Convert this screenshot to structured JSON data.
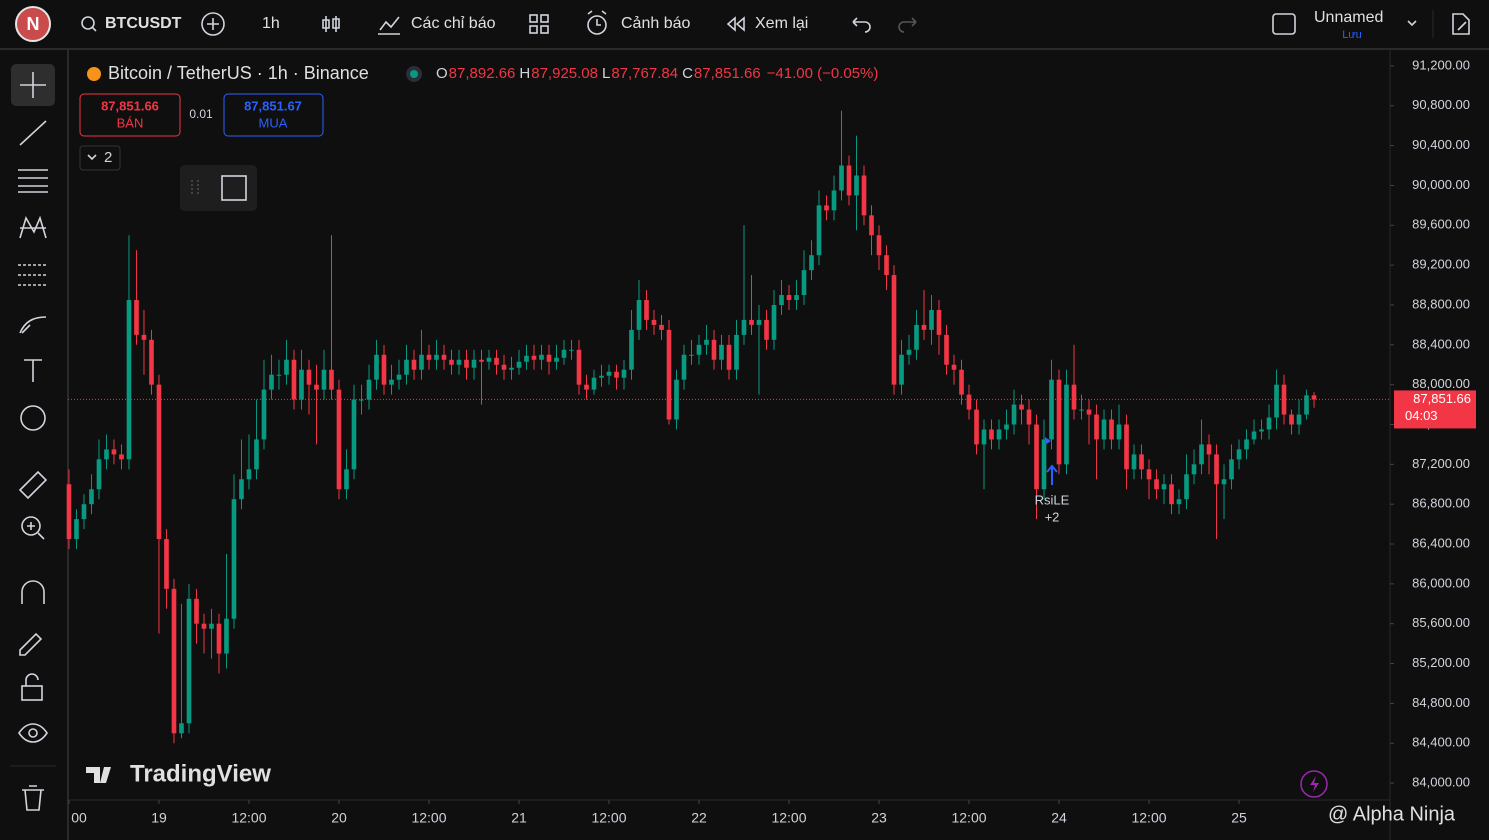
{
  "topbar": {
    "avatar": "N",
    "symbol": "BTCUSDT",
    "interval": "1h",
    "indicators": "Các chỉ báo",
    "alerts": "Cảnh báo",
    "replay": "Xem lại",
    "layout_name": "Unnamed",
    "save": "Lưu"
  },
  "legend": {
    "title": "Bitcoin / TetherUS · 1h · Binance",
    "ohlc": [
      {
        "key": "O",
        "value": "87,892.66"
      },
      {
        "key": "H",
        "value": "87,925.08"
      },
      {
        "key": "L",
        "value": "87,767.84"
      },
      {
        "key": "C",
        "value": "87,851.66"
      }
    ],
    "change": "−41.00 (−0.05%)"
  },
  "order_panel": {
    "sell_price": "87,851.66",
    "sell": "BÁN",
    "spread": "0.01",
    "buy_price": "87,851.67",
    "buy": "MUA",
    "collapsed_count": "2"
  },
  "annotation": {
    "text": "RsiLE",
    "count": "+2"
  },
  "watermark": {
    "logo": "TradingView",
    "author": "@ Alpha Ninja"
  },
  "chart_data": {
    "type": "candlestick",
    "up_color": "#089981",
    "down_color": "#f23645",
    "open": [
      87000,
      86450,
      86650,
      86800,
      86950,
      87250,
      87350,
      87300,
      87250,
      88850,
      88500,
      88450,
      88000,
      86450,
      85950,
      84500,
      84600,
      85850,
      85600,
      85550,
      85600,
      85300,
      85650,
      86850,
      87050,
      87150,
      87450,
      87950,
      88100,
      88100,
      88250,
      87850,
      88150,
      88000,
      87950,
      88150,
      87950,
      86950,
      87150,
      87850,
      87850,
      88050,
      88300,
      88000,
      88050,
      88100,
      88250,
      88150,
      88300,
      88250,
      88300,
      88250,
      88200,
      88250,
      88170,
      88250,
      88230,
      88270,
      88200,
      88150,
      88170,
      88230,
      88290,
      88250,
      88300,
      88230,
      88270,
      88350,
      88350,
      88000,
      87950,
      88070,
      88090,
      88130,
      88070,
      88150,
      88550,
      88850,
      88650,
      88600,
      88550,
      87650,
      88050,
      88300,
      88300,
      88400,
      88450,
      88250,
      88400,
      88150,
      88500,
      88650,
      88600,
      88650,
      88450,
      88800,
      88900,
      88850,
      88900,
      89150,
      89300,
      89800,
      89750,
      89950,
      90200,
      89900,
      90100,
      89700,
      89500,
      89300,
      89100,
      88000,
      88300,
      88350,
      88600,
      88550,
      88750,
      88500,
      88200,
      88150,
      87900,
      87750,
      87400,
      87550,
      87450,
      87550,
      87600,
      87800,
      87750,
      87600,
      86950,
      87450,
      88050,
      87200,
      88000,
      87750,
      87750,
      87700,
      87450,
      87650,
      87450,
      87600,
      87150,
      87300,
      87150,
      87050,
      86950,
      87000,
      86800,
      86850,
      87100,
      87200,
      87400,
      87300,
      87000,
      87050,
      87250,
      87350,
      87450,
      87530,
      87550,
      87670,
      88000,
      87700,
      87600,
      87700,
      87892.66
    ],
    "high": [
      87150,
      86750,
      86900,
      87100,
      87450,
      87500,
      87450,
      87400,
      89500,
      89350,
      88750,
      88550,
      88100,
      86550,
      86050,
      85800,
      86000,
      85950,
      85700,
      85750,
      85700,
      86300,
      87100,
      87450,
      87500,
      87850,
      88250,
      88300,
      88250,
      88450,
      88350,
      88350,
      88250,
      88200,
      88350,
      89500,
      88050,
      87350,
      88000,
      88000,
      88200,
      88450,
      88400,
      88200,
      88250,
      88400,
      88350,
      88550,
      88400,
      88450,
      88400,
      88350,
      88350,
      88350,
      88350,
      88350,
      88350,
      88350,
      88300,
      88280,
      88350,
      88400,
      88400,
      88400,
      88400,
      88400,
      88450,
      88450,
      88450,
      88100,
      88150,
      88200,
      88200,
      88200,
      88250,
      88750,
      89050,
      88950,
      88750,
      88700,
      88650,
      88150,
      88400,
      88450,
      88500,
      88600,
      88550,
      88500,
      88500,
      88650,
      89600,
      89100,
      88800,
      88750,
      88950,
      89050,
      89000,
      89050,
      89350,
      89450,
      89950,
      89900,
      90100,
      90750,
      90300,
      90500,
      90200,
      89800,
      89600,
      89400,
      89200,
      88450,
      88500,
      88750,
      88950,
      88900,
      88850,
      88600,
      88300,
      88250,
      88000,
      87850,
      87650,
      87650,
      87650,
      87750,
      87950,
      87900,
      87850,
      87700,
      87650,
      88250,
      88150,
      88150,
      88400,
      87900,
      87850,
      87800,
      87750,
      87750,
      87800,
      87700,
      87400,
      87400,
      87250,
      87150,
      87100,
      87100,
      86950,
      87300,
      87350,
      87650,
      87500,
      87400,
      87200,
      87400,
      87450,
      87550,
      87650,
      87650,
      87800,
      88150,
      88100,
      87750,
      87850,
      87950,
      87925.08
    ],
    "low": [
      86350,
      86350,
      86550,
      86700,
      86850,
      87150,
      87200,
      87150,
      87150,
      88400,
      88100,
      87900,
      85500,
      85750,
      84400,
      84450,
      84500,
      85400,
      85300,
      85250,
      85100,
      85150,
      85550,
      86750,
      86950,
      87050,
      87350,
      87850,
      87950,
      88000,
      87750,
      87750,
      87700,
      87400,
      87850,
      87850,
      86850,
      86850,
      87050,
      87700,
      87750,
      87950,
      87900,
      87900,
      87950,
      88000,
      88050,
      88050,
      88150,
      88150,
      88150,
      88100,
      88100,
      88050,
      88050,
      87800,
      88150,
      88100,
      88050,
      88050,
      88100,
      88150,
      88150,
      88150,
      88100,
      88150,
      88200,
      88250,
      87900,
      87850,
      87900,
      87980,
      88000,
      87950,
      87950,
      88050,
      88450,
      88550,
      88500,
      88450,
      87600,
      87550,
      87950,
      88200,
      88200,
      88300,
      88150,
      88150,
      88050,
      88050,
      88400,
      88500,
      87900,
      88350,
      88350,
      88700,
      88750,
      88750,
      88800,
      89050,
      89200,
      89650,
      89650,
      89850,
      89800,
      89550,
      89600,
      89300,
      89150,
      88950,
      87900,
      87900,
      88200,
      88250,
      88450,
      88400,
      88300,
      88100,
      88000,
      87800,
      87650,
      87300,
      86950,
      87350,
      87350,
      87450,
      87500,
      87600,
      87400,
      86650,
      86850,
      87350,
      87100,
      87100,
      87650,
      87650,
      87400,
      87050,
      87350,
      87350,
      87350,
      86950,
      87050,
      87050,
      86850,
      86850,
      86800,
      86700,
      86700,
      86750,
      87000,
      87100,
      87100,
      86450,
      86650,
      86950,
      87150,
      87250,
      87400,
      87450,
      87450,
      87550,
      87600,
      87500,
      87500,
      87650,
      87767.84
    ],
    "close": [
      86450,
      86650,
      86800,
      86950,
      87250,
      87350,
      87300,
      87250,
      88850,
      88500,
      88450,
      88000,
      86450,
      85950,
      84500,
      84600,
      85850,
      85600,
      85550,
      85600,
      85300,
      85650,
      86850,
      87050,
      87150,
      87450,
      87950,
      88100,
      88100,
      88250,
      87850,
      88150,
      88000,
      87950,
      88150,
      87950,
      86950,
      87150,
      87850,
      87850,
      88050,
      88300,
      88000,
      88050,
      88100,
      88250,
      88150,
      88300,
      88250,
      88300,
      88250,
      88200,
      88250,
      88170,
      88250,
      88230,
      88270,
      88200,
      88150,
      88170,
      88230,
      88290,
      88250,
      88300,
      88230,
      88270,
      88350,
      88350,
      88000,
      87950,
      88070,
      88090,
      88130,
      88070,
      88150,
      88550,
      88850,
      88650,
      88600,
      88550,
      87650,
      88050,
      88300,
      88300,
      88400,
      88450,
      88250,
      88400,
      88150,
      88500,
      88650,
      88600,
      88650,
      88450,
      88800,
      88900,
      88850,
      88900,
      89150,
      89300,
      89800,
      89750,
      89950,
      90200,
      89900,
      90100,
      89700,
      89500,
      89300,
      89100,
      88000,
      88300,
      88350,
      88600,
      88550,
      88750,
      88500,
      88200,
      88150,
      87900,
      87750,
      87400,
      87550,
      87450,
      87550,
      87600,
      87800,
      87750,
      87600,
      86950,
      87450,
      88050,
      87200,
      88000,
      87750,
      87750,
      87700,
      87450,
      87650,
      87450,
      87600,
      87150,
      87300,
      87150,
      87050,
      86950,
      87000,
      86800,
      86850,
      87100,
      87200,
      87400,
      87300,
      87000,
      87050,
      87250,
      87350,
      87450,
      87530,
      87550,
      87670,
      88000,
      87700,
      87600,
      87700,
      87892.66,
      87851.66
    ],
    "last_price_label": "87,851.66",
    "countdown": "04:03",
    "ylim": [
      83830,
      91360
    ],
    "yticks": [
      {
        "value": 84000,
        "label": "84,000.00"
      },
      {
        "value": 84400,
        "label": "84,400.00"
      },
      {
        "value": 84800,
        "label": "84,800.00"
      },
      {
        "value": 85200,
        "label": "85,200.00"
      },
      {
        "value": 85600,
        "label": "85,600.00"
      },
      {
        "value": 86000,
        "label": "86,000.00"
      },
      {
        "value": 86400,
        "label": "86,400.00"
      },
      {
        "value": 86800,
        "label": "86,800.00"
      },
      {
        "value": 87200,
        "label": "87,200.00"
      },
      {
        "value": 87600,
        "label": "87,600.00"
      },
      {
        "value": 88000,
        "label": "88,000.00"
      },
      {
        "value": 88400,
        "label": "88,400.00"
      },
      {
        "value": 88800,
        "label": "88,800.00"
      },
      {
        "value": 89200,
        "label": "89,200.00"
      },
      {
        "value": 89600,
        "label": "89,600.00"
      },
      {
        "value": 90000,
        "label": "90,000.00"
      },
      {
        "value": 90400,
        "label": "90,400.00"
      },
      {
        "value": 90800,
        "label": "90,800.00"
      },
      {
        "value": 91200,
        "label": "91,200.00"
      }
    ],
    "xlim": [
      -0.13,
      176.13
    ],
    "xticks": [
      {
        "value": 0,
        "label": "00"
      },
      {
        "value": 12,
        "label": "19"
      },
      {
        "value": 24,
        "label": "12:00"
      },
      {
        "value": 36,
        "label": "20"
      },
      {
        "value": 48,
        "label": "12:00"
      },
      {
        "value": 60,
        "label": "21"
      },
      {
        "value": 72,
        "label": "12:00"
      },
      {
        "value": 84,
        "label": "22"
      },
      {
        "value": 96,
        "label": "12:00"
      },
      {
        "value": 108,
        "label": "23"
      },
      {
        "value": 120,
        "label": "12:00"
      },
      {
        "value": 132,
        "label": "24"
      },
      {
        "value": 144,
        "label": "12:00"
      },
      {
        "value": 156,
        "label": "25"
      }
    ],
    "grid": false
  }
}
